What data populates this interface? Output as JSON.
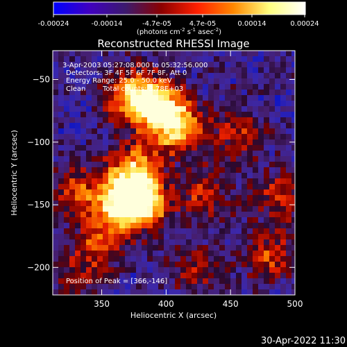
{
  "chart_data": {
    "type": "heatmap",
    "title": "Reconstructed RHESSI Image",
    "xlabel": "Heliocentric X (arcsec)",
    "ylabel": "Heliocentric Y (arcsec)",
    "xlim": [
      312,
      500
    ],
    "ylim": [
      -222,
      -27
    ],
    "x_ticks": [
      350,
      400,
      450,
      500
    ],
    "y_ticks": [
      -50,
      -100,
      -150,
      -200
    ],
    "colorbar": {
      "ticks": [
        "-0.00024",
        "-0.00014",
        "-4.7e-05",
        "4.7e-05",
        "0.00014",
        "0.00024"
      ],
      "range": [
        -0.00024,
        0.00024
      ],
      "units_main": "(photons cm",
      "units_exp1": "-2",
      "units_mid": " s",
      "units_exp2": "-1",
      "units_end": " asec",
      "units_exp3": "-2",
      "units_close": ")",
      "colors": [
        "#0000ff",
        "#4000c0",
        "#3c1a6e",
        "#8c0000",
        "#ff2000",
        "#ff8800",
        "#ffff80",
        "#ffffff"
      ]
    },
    "annotations": [
      "3-Apr-2003 05:27:08.000 to 05:32:56.000",
      "Detectors: 3F 4F 5F 6F 7F 8F, Att 0",
      "Energy Range: 25.0 - 50.0 keV",
      "Clean",
      "Total counts: 3.78E+03"
    ],
    "peak_label": "Position of Peak = [366,-146]",
    "peak": [
      366,
      -146
    ],
    "emission_sources": [
      {
        "x": 392,
        "y": -70,
        "amp": 1.0
      },
      {
        "x": 408,
        "y": -88,
        "amp": 0.9
      },
      {
        "x": 372,
        "y": -62,
        "amp": 0.7
      },
      {
        "x": 382,
        "y": -148,
        "amp": 1.0
      },
      {
        "x": 366,
        "y": -146,
        "amp": 0.95
      },
      {
        "x": 375,
        "y": -120,
        "amp": 0.7
      },
      {
        "x": 350,
        "y": -178,
        "amp": 0.55
      },
      {
        "x": 332,
        "y": -140,
        "amp": 0.5
      },
      {
        "x": 430,
        "y": -140,
        "amp": 0.45
      },
      {
        "x": 480,
        "y": -190,
        "amp": 0.5
      },
      {
        "x": 455,
        "y": -95,
        "amp": 0.45
      },
      {
        "x": 490,
        "y": -142,
        "amp": 0.45
      },
      {
        "x": 425,
        "y": -200,
        "amp": 0.35
      },
      {
        "x": 330,
        "y": -205,
        "amp": 0.35
      }
    ]
  },
  "footer": {
    "timestamp": "30-Apr-2022 11:30"
  }
}
